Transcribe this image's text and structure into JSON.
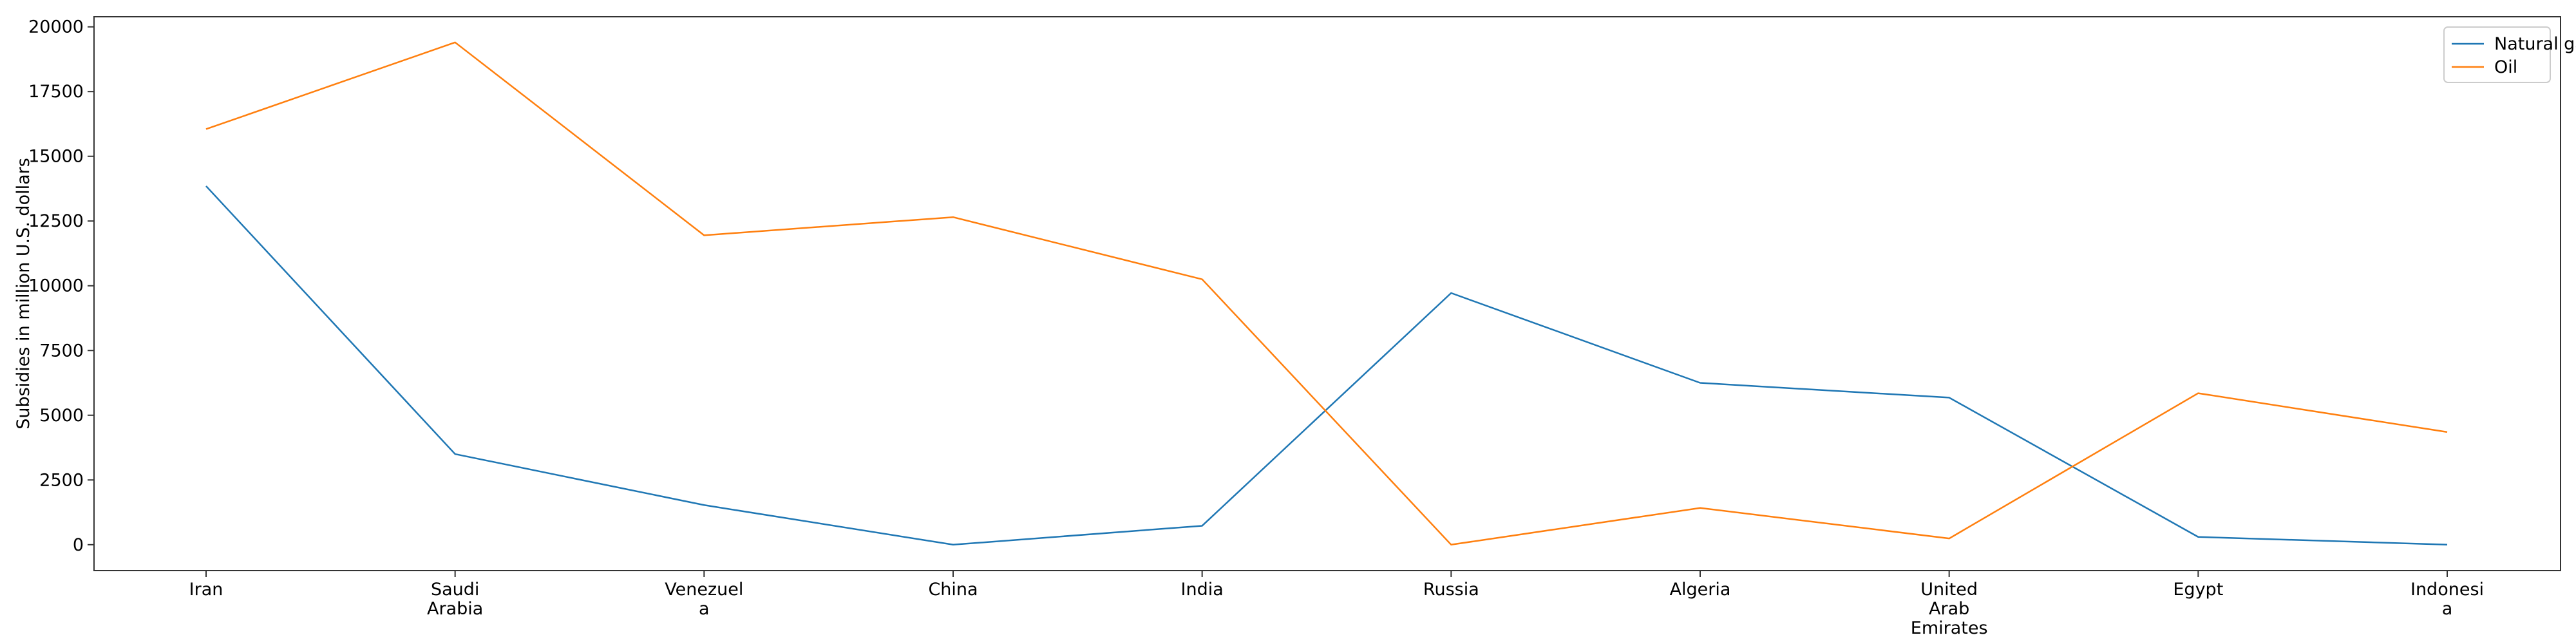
{
  "chart_data": {
    "type": "line",
    "title": "",
    "xlabel": "",
    "ylabel": "Subsidies in million U.S. dollars",
    "categories": [
      [
        "Iran"
      ],
      [
        "Saudi",
        "Arabia"
      ],
      [
        "Venezuel",
        "a"
      ],
      [
        "China"
      ],
      [
        "India"
      ],
      [
        "Russia"
      ],
      [
        "Algeria"
      ],
      [
        "United",
        "Arab",
        "Emirates"
      ],
      [
        "Egypt"
      ],
      [
        "Indonesi",
        "a"
      ]
    ],
    "series": [
      {
        "name": "Natural gas",
        "color": "#1f77b4",
        "values": [
          13850,
          3500,
          1530,
          0,
          730,
          9720,
          6250,
          5680,
          300,
          0
        ]
      },
      {
        "name": "Oil",
        "color": "#ff7f0e",
        "values": [
          16050,
          19400,
          11950,
          12650,
          10250,
          0,
          1420,
          240,
          5850,
          4350
        ]
      }
    ],
    "ylim": [
      -1000,
      20390
    ],
    "yticks": [
      "0",
      "2500",
      "5000",
      "7500",
      "10000",
      "12500",
      "15000",
      "17500",
      "20000"
    ],
    "grid": false,
    "legend_position": "top-right"
  }
}
